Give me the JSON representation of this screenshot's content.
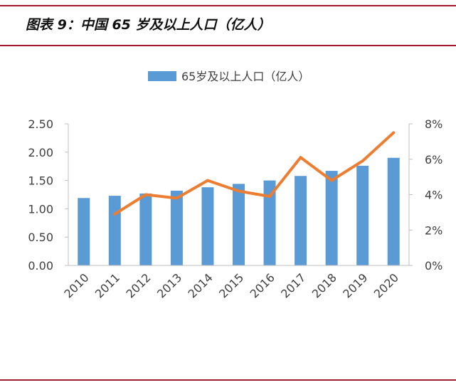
{
  "figure": {
    "title": "图表 9：中国 65 岁及以上人口（亿人）"
  },
  "colors": {
    "rule": "#a3192e",
    "bar": "#5b9bd5",
    "line": "#ed7d31",
    "axis": "#bfbfbf",
    "text": "#404040"
  },
  "chart_data": {
    "type": "bar",
    "title": "",
    "categories": [
      "2010",
      "2011",
      "2012",
      "2013",
      "2014",
      "2015",
      "2016",
      "2017",
      "2018",
      "2019",
      "2020"
    ],
    "series": [
      {
        "name": "65岁及以上人口（亿人）",
        "type": "bar",
        "axis": "left",
        "values": [
          1.19,
          1.23,
          1.27,
          1.32,
          1.38,
          1.44,
          1.5,
          1.58,
          1.67,
          1.76,
          1.9
        ]
      },
      {
        "name": "",
        "type": "line",
        "axis": "right",
        "values": [
          null,
          2.9,
          4.0,
          3.8,
          4.8,
          4.2,
          3.9,
          6.1,
          4.8,
          5.9,
          7.5
        ]
      }
    ],
    "legend": [
      "65岁及以上人口（亿人）"
    ],
    "legend_position": "top-center",
    "left_axis": {
      "ylim": [
        0,
        2.5
      ],
      "ticks": [
        "0.00",
        "0.50",
        "1.00",
        "1.50",
        "2.00",
        "2.50"
      ]
    },
    "right_axis": {
      "ylim": [
        0,
        8
      ],
      "ticks": [
        "0%",
        "2%",
        "4%",
        "6%",
        "8%"
      ]
    },
    "grid": false
  }
}
